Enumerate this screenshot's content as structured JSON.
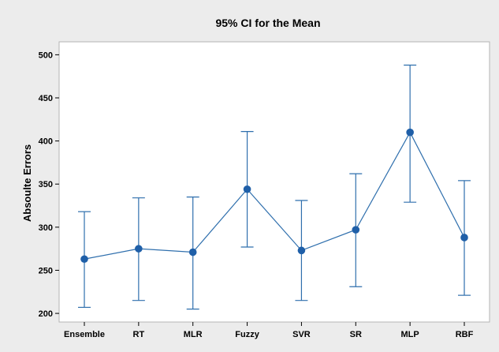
{
  "chart_data": {
    "type": "interval",
    "title": "95% CI for the Mean",
    "xlabel": "",
    "ylabel": "Absoulte Errors",
    "categories": [
      "Ensemble",
      "RT",
      "MLR",
      "Fuzzy",
      "SVR",
      "SR",
      "MLP",
      "RBF"
    ],
    "mean": [
      263,
      275,
      271,
      344,
      273,
      297,
      410,
      288
    ],
    "lower": [
      207,
      215,
      205,
      277,
      215,
      231,
      329,
      221
    ],
    "upper": [
      318,
      334,
      335,
      411,
      331,
      362,
      488,
      354
    ],
    "ylim": [
      190,
      515
    ],
    "yticks": [
      200,
      250,
      300,
      350,
      400,
      450,
      500
    ],
    "grid": false,
    "colors": {
      "series": "#2f6fad",
      "marker": "#1f5fa8",
      "outer_background": "#ececec",
      "plot_background": "#ffffff"
    }
  }
}
